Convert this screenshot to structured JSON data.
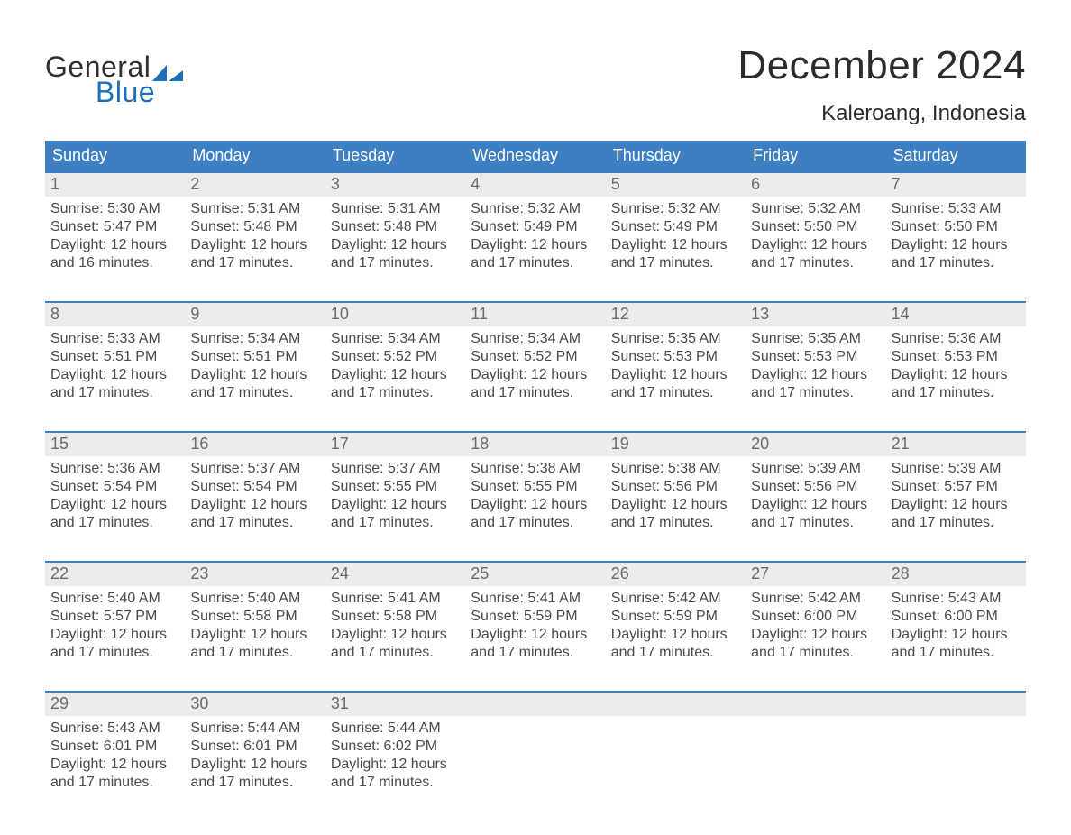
{
  "brand": {
    "line1": "General",
    "line2": "Blue"
  },
  "title": {
    "month": "December 2024",
    "location": "Kaleroang, Indonesia"
  },
  "weekday_labels": [
    "Sunday",
    "Monday",
    "Tuesday",
    "Wednesday",
    "Thursday",
    "Friday",
    "Saturday"
  ],
  "field_labels": {
    "sunrise": "Sunrise",
    "sunset": "Sunset",
    "daylight": "Daylight"
  },
  "colors": {
    "header_blue": "#3d7fc0",
    "brand_blue": "#1d6fb8",
    "daynum_bg": "#ececec",
    "text": "#363636"
  },
  "days": [
    {
      "n": 1,
      "sunrise": "5:30 AM",
      "sunset": "5:47 PM",
      "daylight": "12 hours and 16 minutes."
    },
    {
      "n": 2,
      "sunrise": "5:31 AM",
      "sunset": "5:48 PM",
      "daylight": "12 hours and 17 minutes."
    },
    {
      "n": 3,
      "sunrise": "5:31 AM",
      "sunset": "5:48 PM",
      "daylight": "12 hours and 17 minutes."
    },
    {
      "n": 4,
      "sunrise": "5:32 AM",
      "sunset": "5:49 PM",
      "daylight": "12 hours and 17 minutes."
    },
    {
      "n": 5,
      "sunrise": "5:32 AM",
      "sunset": "5:49 PM",
      "daylight": "12 hours and 17 minutes."
    },
    {
      "n": 6,
      "sunrise": "5:32 AM",
      "sunset": "5:50 PM",
      "daylight": "12 hours and 17 minutes."
    },
    {
      "n": 7,
      "sunrise": "5:33 AM",
      "sunset": "5:50 PM",
      "daylight": "12 hours and 17 minutes."
    },
    {
      "n": 8,
      "sunrise": "5:33 AM",
      "sunset": "5:51 PM",
      "daylight": "12 hours and 17 minutes."
    },
    {
      "n": 9,
      "sunrise": "5:34 AM",
      "sunset": "5:51 PM",
      "daylight": "12 hours and 17 minutes."
    },
    {
      "n": 10,
      "sunrise": "5:34 AM",
      "sunset": "5:52 PM",
      "daylight": "12 hours and 17 minutes."
    },
    {
      "n": 11,
      "sunrise": "5:34 AM",
      "sunset": "5:52 PM",
      "daylight": "12 hours and 17 minutes."
    },
    {
      "n": 12,
      "sunrise": "5:35 AM",
      "sunset": "5:53 PM",
      "daylight": "12 hours and 17 minutes."
    },
    {
      "n": 13,
      "sunrise": "5:35 AM",
      "sunset": "5:53 PM",
      "daylight": "12 hours and 17 minutes."
    },
    {
      "n": 14,
      "sunrise": "5:36 AM",
      "sunset": "5:53 PM",
      "daylight": "12 hours and 17 minutes."
    },
    {
      "n": 15,
      "sunrise": "5:36 AM",
      "sunset": "5:54 PM",
      "daylight": "12 hours and 17 minutes."
    },
    {
      "n": 16,
      "sunrise": "5:37 AM",
      "sunset": "5:54 PM",
      "daylight": "12 hours and 17 minutes."
    },
    {
      "n": 17,
      "sunrise": "5:37 AM",
      "sunset": "5:55 PM",
      "daylight": "12 hours and 17 minutes."
    },
    {
      "n": 18,
      "sunrise": "5:38 AM",
      "sunset": "5:55 PM",
      "daylight": "12 hours and 17 minutes."
    },
    {
      "n": 19,
      "sunrise": "5:38 AM",
      "sunset": "5:56 PM",
      "daylight": "12 hours and 17 minutes."
    },
    {
      "n": 20,
      "sunrise": "5:39 AM",
      "sunset": "5:56 PM",
      "daylight": "12 hours and 17 minutes."
    },
    {
      "n": 21,
      "sunrise": "5:39 AM",
      "sunset": "5:57 PM",
      "daylight": "12 hours and 17 minutes."
    },
    {
      "n": 22,
      "sunrise": "5:40 AM",
      "sunset": "5:57 PM",
      "daylight": "12 hours and 17 minutes."
    },
    {
      "n": 23,
      "sunrise": "5:40 AM",
      "sunset": "5:58 PM",
      "daylight": "12 hours and 17 minutes."
    },
    {
      "n": 24,
      "sunrise": "5:41 AM",
      "sunset": "5:58 PM",
      "daylight": "12 hours and 17 minutes."
    },
    {
      "n": 25,
      "sunrise": "5:41 AM",
      "sunset": "5:59 PM",
      "daylight": "12 hours and 17 minutes."
    },
    {
      "n": 26,
      "sunrise": "5:42 AM",
      "sunset": "5:59 PM",
      "daylight": "12 hours and 17 minutes."
    },
    {
      "n": 27,
      "sunrise": "5:42 AM",
      "sunset": "6:00 PM",
      "daylight": "12 hours and 17 minutes."
    },
    {
      "n": 28,
      "sunrise": "5:43 AM",
      "sunset": "6:00 PM",
      "daylight": "12 hours and 17 minutes."
    },
    {
      "n": 29,
      "sunrise": "5:43 AM",
      "sunset": "6:01 PM",
      "daylight": "12 hours and 17 minutes."
    },
    {
      "n": 30,
      "sunrise": "5:44 AM",
      "sunset": "6:01 PM",
      "daylight": "12 hours and 17 minutes."
    },
    {
      "n": 31,
      "sunrise": "5:44 AM",
      "sunset": "6:02 PM",
      "daylight": "12 hours and 17 minutes."
    }
  ]
}
